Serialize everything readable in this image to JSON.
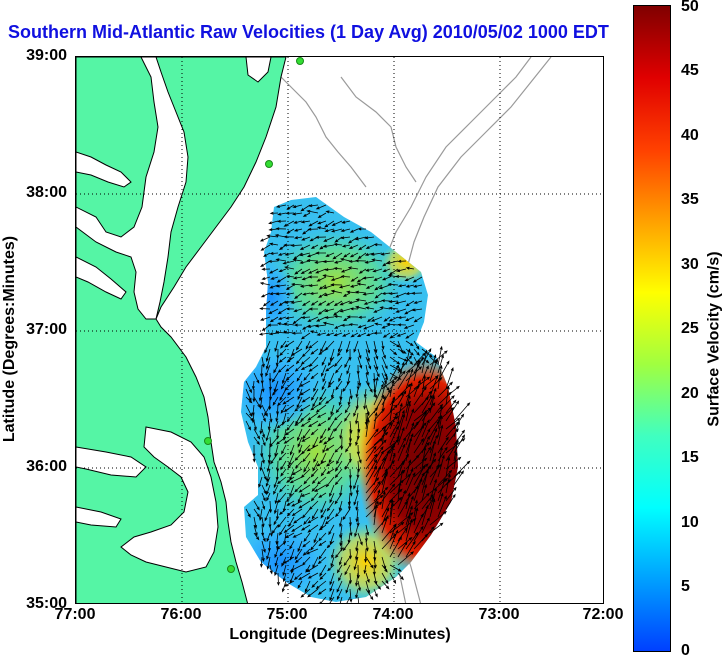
{
  "title": "Southern Mid-Atlantic Raw Velocities (1 Day Avg) 2010/05/02 1000 EDT",
  "x_axis": {
    "label": "Longitude (Degrees:Minutes)",
    "ticks": [
      "77:00",
      "76:00",
      "75:00",
      "74:00",
      "73:00",
      "72:00"
    ],
    "range": [
      -77,
      -72
    ]
  },
  "y_axis": {
    "label": "Latitude (Degrees:Minutes)",
    "ticks": [
      "39:00",
      "38:00",
      "37:00",
      "36:00",
      "35:00"
    ],
    "range": [
      35,
      39
    ]
  },
  "colorbar": {
    "label": "Surface Velocity (cm/s)",
    "ticks": [
      "50",
      "45",
      "40",
      "35",
      "30",
      "25",
      "20",
      "15",
      "10",
      "5",
      "0"
    ],
    "range": [
      0,
      50
    ],
    "colors": [
      "#0040ff",
      "#00a0ff",
      "#00ffff",
      "#40ffc0",
      "#a0ff40",
      "#ffff00",
      "#ffa000",
      "#ff4000",
      "#e00000",
      "#800000"
    ]
  },
  "colors": {
    "land": "#55f5a5",
    "coast_line": "#000000",
    "bathymetry": "#999999",
    "grid": "#000000",
    "arrows": "#000000",
    "station": "#33dd33"
  },
  "grid": "dotted"
}
